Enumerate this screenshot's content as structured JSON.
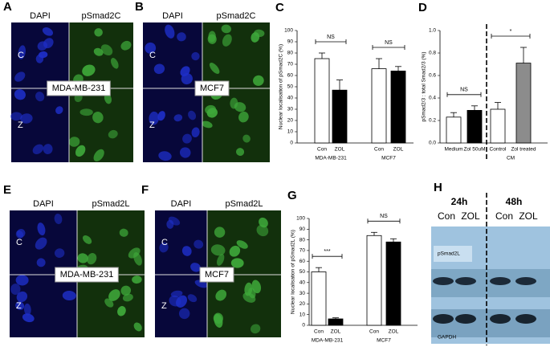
{
  "panels": {
    "A": {
      "letter": "A",
      "columns": [
        "DAPI",
        "pSmad2C"
      ],
      "rows": [
        "C",
        "Z"
      ],
      "cell_label": "MDA-MB-231"
    },
    "B": {
      "letter": "B",
      "columns": [
        "DAPI",
        "pSmad2C"
      ],
      "rows": [
        "C",
        "Z"
      ],
      "cell_label": "MCF7"
    },
    "E": {
      "letter": "E",
      "columns": [
        "DAPI",
        "pSmad2L"
      ],
      "rows": [
        "C",
        "Z"
      ],
      "cell_label": "MDA-MB-231"
    },
    "F": {
      "letter": "F",
      "columns": [
        "DAPI",
        "pSmad2L"
      ],
      "rows": [
        "C",
        "Z"
      ],
      "cell_label": "MCF7"
    },
    "H": {
      "letter": "H",
      "times": [
        "24h",
        "48h"
      ],
      "lanes": [
        "Con",
        "ZOL",
        "Con",
        "ZOL"
      ],
      "bands": [
        "pSmad2L",
        "GAPDH"
      ]
    }
  },
  "chart_data": [
    {
      "type": "bar",
      "letter": "C",
      "y_label": "Nuclear localisation of pSmad2C (%)",
      "categories": [
        "Con",
        "ZOL",
        "Con",
        "ZOL"
      ],
      "groups": [
        "MDA-MB-231",
        "MCF7"
      ],
      "values": [
        75,
        47,
        66,
        64
      ],
      "errors": [
        5,
        9,
        9,
        4
      ],
      "colors": [
        "#ffffff",
        "#000000",
        "#ffffff",
        "#000000"
      ],
      "ylim": [
        0,
        100
      ],
      "yticks": [
        0,
        10,
        20,
        30,
        40,
        50,
        60,
        70,
        80,
        90,
        100
      ],
      "annotations": [
        "NS",
        "NS"
      ]
    },
    {
      "type": "bar",
      "letter": "D",
      "y_label": "pSmad2/3 : total Smad2/3 (%)",
      "categories": [
        "Medium",
        "Zol 50uM",
        "Control",
        "Zol treated"
      ],
      "groups": [
        "CM"
      ],
      "values": [
        0.23,
        0.29,
        0.3,
        0.71
      ],
      "errors": [
        0.04,
        0.04,
        0.06,
        0.14
      ],
      "colors": [
        "#ffffff",
        "#000000",
        "#ffffff",
        "#8c8c8c"
      ],
      "ylim": [
        0,
        1
      ],
      "yticks": [
        {
          "value": 0,
          "label": "0.0"
        },
        0.2,
        0.4,
        0.6,
        0.8,
        {
          "value": 1,
          "label": "1.0"
        }
      ],
      "annotations": [
        "NS",
        "*"
      ]
    },
    {
      "type": "bar",
      "letter": "G",
      "y_label": "Nuclear localisation of pSmad2L (%)",
      "categories": [
        "Con",
        "ZOL",
        "Con",
        "ZOL"
      ],
      "groups": [
        "MDA-MB-231",
        "MCF7"
      ],
      "values": [
        50,
        6,
        84,
        78
      ],
      "errors": [
        4,
        1,
        3,
        3
      ],
      "colors": [
        "#ffffff",
        "#000000",
        "#ffffff",
        "#000000"
      ],
      "ylim": [
        0,
        100
      ],
      "yticks": [
        0,
        10,
        20,
        30,
        40,
        50,
        60,
        70,
        80,
        90,
        100
      ],
      "annotations": [
        "***",
        "NS"
      ]
    }
  ]
}
